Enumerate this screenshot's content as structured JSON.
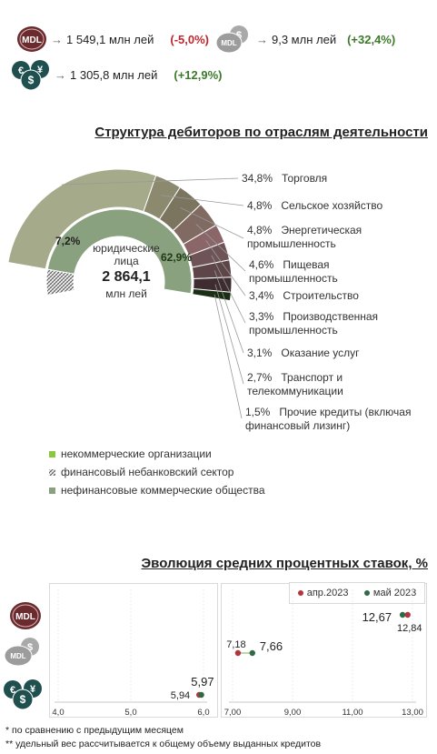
{
  "kpis": {
    "mdl": {
      "icon": "mdl-coin-icon",
      "badge": "MDL",
      "value": "1 549,1 млн лей",
      "change": "(-5,0%)"
    },
    "mdl_silver": {
      "icon": "mdl-silver-coins-icon",
      "badge": "MDL",
      "value": "9,3 млн лей",
      "change": "(+32,4%)"
    },
    "fx": {
      "icon": "currency-coins-icon",
      "value": "1 305,8 млн лей",
      "change": "(+12,9%)"
    }
  },
  "structure": {
    "title": "Структура дебиторов по отраслям деятельности",
    "center": {
      "label_line1": "юридические",
      "label_line2": "лица",
      "value": "2 864,1",
      "unit": "млн лей"
    },
    "inner_labels": {
      "non_financial": "62,9%",
      "financial": "7,2%"
    },
    "legend": [
      {
        "label": "некоммерческие организации",
        "swatch": "solid",
        "color": "#8dc63f"
      },
      {
        "label": "финансовый небанковский сектор",
        "swatch": "hatched",
        "color": "#555555"
      },
      {
        "label": "нефинансовые коммерческие общества",
        "swatch": "solid",
        "color": "#8aa17f"
      }
    ]
  },
  "chart_data": [
    {
      "type": "pie",
      "title": "Структура дебиторов по отраслям деятельности",
      "inner_ring": [
        {
          "name": "нефинансовые коммерческие общества",
          "value": 62.9,
          "color": "#8aa17f"
        },
        {
          "name": "финансовый небанковский сектор",
          "value": 7.2,
          "color": "hatched"
        }
      ],
      "outer_ring": [
        {
          "label": "34,8%",
          "name": "Торговля",
          "value": 34.8,
          "color": "#a5ab8a"
        },
        {
          "label": "4,8%",
          "name": "Сельское хозяйство",
          "value": 4.8,
          "color": "#8b8a6f"
        },
        {
          "label": "4,8%",
          "name": "Энергетическая промышленность",
          "value": 4.8,
          "color": "#7b7560"
        },
        {
          "label": "4,6%",
          "name": "Пищевая промышленность",
          "value": 4.6,
          "color": "#806a62"
        },
        {
          "label": "3,4%",
          "name": "Строительство",
          "value": 3.4,
          "color": "#8a6668"
        },
        {
          "label": "3,3%",
          "name": "Производственная промышленность",
          "value": 3.3,
          "color": "#6e5457"
        },
        {
          "label": "3,1%",
          "name": "Оказание услуг",
          "value": 3.1,
          "color": "#5e4548"
        },
        {
          "label": "2,7%",
          "name": "Транспорт и телекоммуникации",
          "value": 2.7,
          "color": "#3d2d30"
        },
        {
          "label": "1,5%",
          "name": "Прочие кредиты (включая финансовый лизинг)",
          "value": 1.5,
          "color": "#1a2e14"
        }
      ]
    },
    {
      "type": "scatter",
      "title": "Эволюция средних процентных ставок, %",
      "series": [
        {
          "name": "апр.2023",
          "color": "#b5333b"
        },
        {
          "name": "май 2023",
          "color": "#2e6b45"
        }
      ],
      "panels": [
        {
          "xlim": [
            4.0,
            6.0
          ],
          "ticks": [
            "4,0",
            "5,0",
            "6,0"
          ],
          "rows": [
            {
              "row": "fx",
              "apr": 5.94,
              "may": 5.97,
              "apr_label": "5,94",
              "may_label": "5,97"
            }
          ]
        },
        {
          "xlim": [
            7.0,
            13.0
          ],
          "ticks": [
            "7,00",
            "9,00",
            "11,00",
            "13,00"
          ],
          "rows": [
            {
              "row": "mdl",
              "apr": 12.84,
              "may": 12.67,
              "apr_label": "12,84",
              "may_label": "12,67"
            },
            {
              "row": "mdl_silver",
              "apr": 7.18,
              "may": 7.66,
              "apr_label": "7,18",
              "may_label": "7,66"
            }
          ]
        }
      ]
    }
  ],
  "rates": {
    "title": "Эволюция средних процентных ставок, %",
    "legend": [
      {
        "label": "апр.2023",
        "color": "#b5333b"
      },
      {
        "label": "май 2023",
        "color": "#2e6b45"
      }
    ]
  },
  "footnotes": [
    "* по сравнению с предыдущим месяцем",
    "** удельный вес рассчитывается к общему объему выданных  кредитов"
  ]
}
